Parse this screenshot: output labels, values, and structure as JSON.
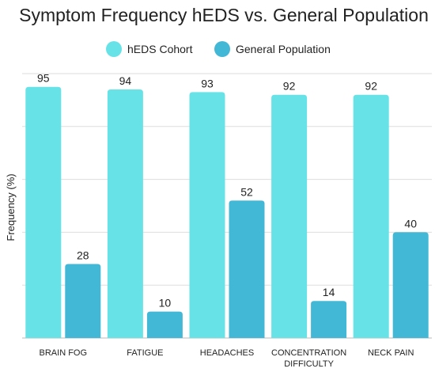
{
  "chart_data": {
    "type": "bar",
    "title": "Symptom Frequency hEDS vs. General Population",
    "ylabel": "Frequency (%)",
    "xlabel": "",
    "categories": [
      "BRAIN FOG",
      "FATIGUE",
      "HEADACHES",
      "CONCENTRATION DIFFICULTY",
      "NECK PAIN"
    ],
    "series": [
      {
        "name": "hEDS Cohort",
        "values": [
          95,
          94,
          93,
          92,
          92
        ],
        "color": "#67E3E8"
      },
      {
        "name": "General Population",
        "values": [
          28,
          10,
          52,
          14,
          40
        ],
        "color": "#42B8D6"
      }
    ],
    "ylim": [
      0,
      100
    ],
    "legend_position": "top-center",
    "grid": true,
    "gridline_color": "#dddddd",
    "baseline_color": "#bbbbbb"
  }
}
